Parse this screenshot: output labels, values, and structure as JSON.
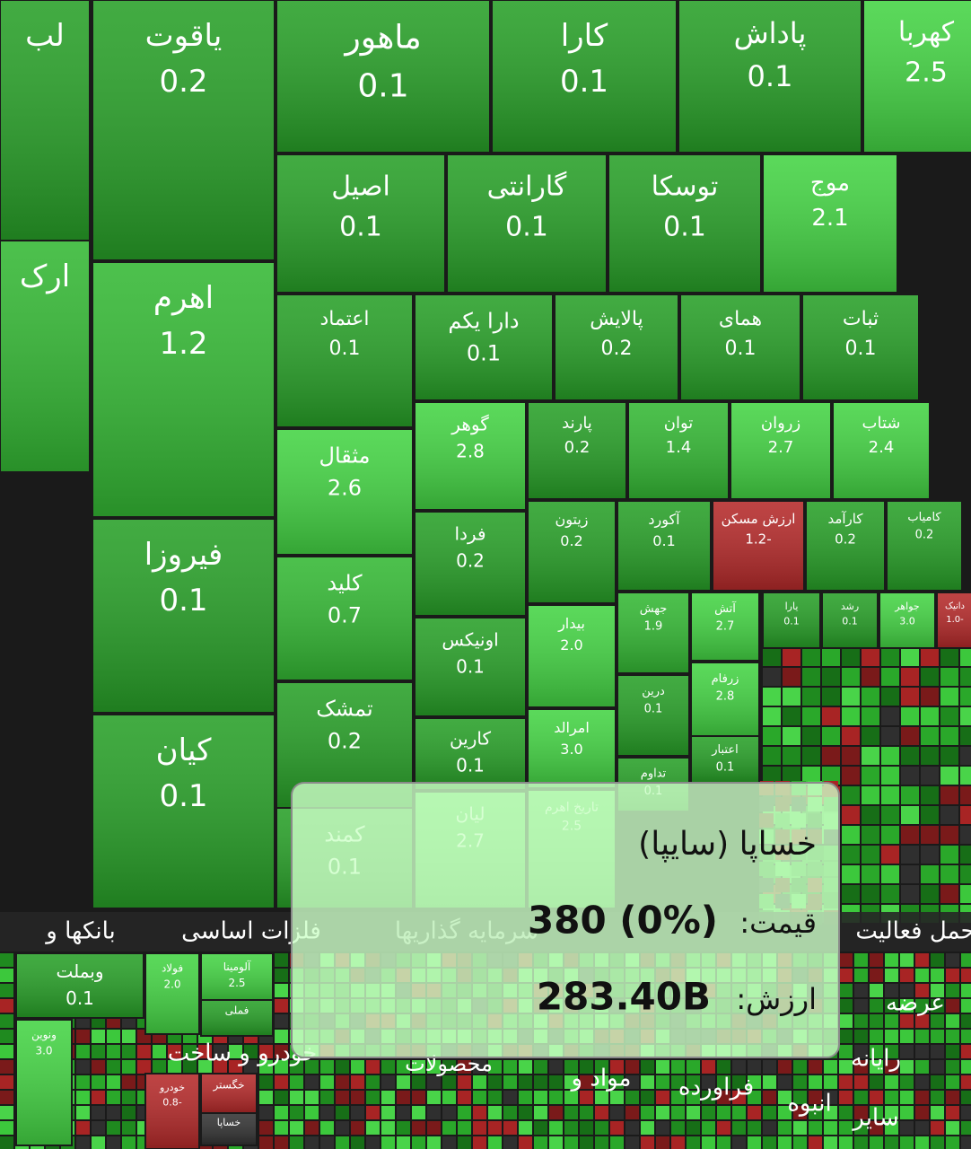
{
  "tiles": [
    {
      "symbol": "لب"
    },
    {
      "symbol": "ارک"
    },
    {
      "symbol": "یاقوت",
      "change": "0.2"
    },
    {
      "symbol": "اهرم",
      "change": "1.2"
    },
    {
      "symbol": "فیروزا",
      "change": "0.1"
    },
    {
      "symbol": "کیان",
      "change": "0.1"
    },
    {
      "symbol": "ماهور",
      "change": "0.1"
    },
    {
      "symbol": "کارا",
      "change": "0.1"
    },
    {
      "symbol": "پاداش",
      "change": "0.1"
    },
    {
      "symbol": "کهربا",
      "change": "2.5"
    },
    {
      "symbol": "اصیل",
      "change": "0.1"
    },
    {
      "symbol": "گارانتی",
      "change": "0.1"
    },
    {
      "symbol": "توسکا",
      "change": "0.1"
    },
    {
      "symbol": "موج",
      "change": "2.1"
    },
    {
      "symbol": "اعتماد",
      "change": "0.1"
    },
    {
      "symbol": "دارا یکم",
      "change": "0.1"
    },
    {
      "symbol": "پالایش",
      "change": "0.2"
    },
    {
      "symbol": "همای",
      "change": "0.1"
    },
    {
      "symbol": "ثبات",
      "change": "0.1"
    },
    {
      "symbol": "مثقال",
      "change": "2.6"
    },
    {
      "symbol": "کلید",
      "change": "0.7"
    },
    {
      "symbol": "تمشک",
      "change": "0.2"
    },
    {
      "symbol": "کمند",
      "change": "0.1"
    },
    {
      "symbol": "گوهر",
      "change": "2.8"
    },
    {
      "symbol": "پارند",
      "change": "0.2"
    },
    {
      "symbol": "توان",
      "change": "1.4"
    },
    {
      "symbol": "زروان",
      "change": "2.7"
    },
    {
      "symbol": "شتاب",
      "change": "2.4"
    },
    {
      "symbol": "فردا",
      "change": "0.2"
    },
    {
      "symbol": "اونیکس",
      "change": "0.1"
    },
    {
      "symbol": "کارین",
      "change": "0.1"
    },
    {
      "symbol": "لیان",
      "change": "2.7"
    },
    {
      "symbol": "زیتون",
      "change": "0.2"
    },
    {
      "symbol": "آکورد",
      "change": "0.1"
    },
    {
      "symbol": "ارزش مسکن",
      "change": "1.2-"
    },
    {
      "symbol": "کارآمد",
      "change": "0.2"
    },
    {
      "symbol": "کامیاب",
      "change": "0.2"
    },
    {
      "symbol": "بیدار",
      "change": "2.0"
    },
    {
      "symbol": "امرالد",
      "change": "3.0"
    },
    {
      "symbol": "تاریخ اهرم",
      "change": "2.5"
    },
    {
      "symbol": "جهش",
      "change": "1.9"
    },
    {
      "symbol": "آتش",
      "change": "2.7"
    },
    {
      "symbol": "درین",
      "change": "0.1"
    },
    {
      "symbol": "زرفام",
      "change": "2.8"
    },
    {
      "symbol": "اعتبار",
      "change": "0.1"
    },
    {
      "symbol": "تداوم",
      "change": "0.1"
    },
    {
      "symbol": "یارا",
      "change": "0.1"
    },
    {
      "symbol": "رشد",
      "change": "0.1"
    },
    {
      "symbol": "جواهر",
      "change": "3.0"
    },
    {
      "symbol": "دانیک",
      "change": "1.0-"
    },
    {
      "symbol": "وبملت",
      "change": "0.1"
    },
    {
      "symbol": "فولاد",
      "change": "2.0"
    },
    {
      "symbol": "آلومینا",
      "change": "2.5"
    },
    {
      "symbol": "فملی"
    },
    {
      "symbol": "ونوین",
      "change": "3.0"
    },
    {
      "symbol": "خودرو",
      "change": "0.8-"
    },
    {
      "symbol": "خگستر"
    },
    {
      "symbol": "خساپا"
    }
  ],
  "sectors": [
    "بانکها و",
    "فلزات اساسی",
    "سرمایه گذاریها",
    "حمل فعالیت",
    "خودرو و ساخت",
    "محصولات",
    "مواد و",
    "فراورده",
    "انبوه",
    "سایر",
    "رایانه",
    "عرضه"
  ],
  "popup": {
    "title": "خساپا (سایپا)",
    "price_label": "قیمت:",
    "price": "380 (0%)",
    "value_label": "ارزش:",
    "value": "283.40B"
  }
}
